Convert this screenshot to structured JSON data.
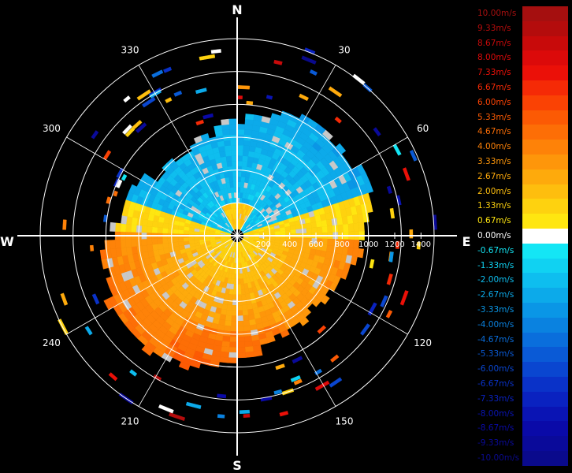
{
  "chart_data": {
    "type": "polar-heatmap",
    "title": "",
    "compass": {
      "north": "N",
      "east": "E",
      "south": "S",
      "west": "W"
    },
    "azimuth_labels": [
      "30",
      "60",
      "120",
      "150",
      "210",
      "240",
      "300",
      "330"
    ],
    "azimuth_values": [
      30,
      60,
      120,
      150,
      210,
      240,
      300,
      330
    ],
    "range_labels": [
      "200",
      "400",
      "600",
      "800",
      "1000",
      "1200",
      "1400"
    ],
    "range_values": [
      200,
      400,
      600,
      800,
      1000,
      1200,
      1400
    ],
    "range_max": 1500,
    "ring_values": [
      250,
      500,
      750,
      1000,
      1250,
      1500
    ],
    "legend": {
      "unit": "m/s",
      "entries": [
        {
          "label": "10.00m/s",
          "value": 10.0,
          "color": "#a50f0f"
        },
        {
          "label": "9.33m/s",
          "value": 9.33,
          "color": "#b40c0c"
        },
        {
          "label": "8.67m/s",
          "value": 8.67,
          "color": "#c80a0a"
        },
        {
          "label": "8.00m/s",
          "value": 8.0,
          "color": "#dc0a0a"
        },
        {
          "label": "7.33m/s",
          "value": 7.33,
          "color": "#eb1008"
        },
        {
          "label": "6.67m/s",
          "value": 6.67,
          "color": "#f52a06"
        },
        {
          "label": "6.00m/s",
          "value": 6.0,
          "color": "#fa4204"
        },
        {
          "label": "5.33m/s",
          "value": 5.33,
          "color": "#fc5a04"
        },
        {
          "label": "4.67m/s",
          "value": 4.67,
          "color": "#fd6e06"
        },
        {
          "label": "4.00m/s",
          "value": 4.0,
          "color": "#fe8208"
        },
        {
          "label": "3.33m/s",
          "value": 3.33,
          "color": "#fe960a"
        },
        {
          "label": "2.67m/s",
          "value": 2.67,
          "color": "#feaa0c"
        },
        {
          "label": "2.00m/s",
          "value": 2.0,
          "color": "#febe0e"
        },
        {
          "label": "1.33m/s",
          "value": 1.33,
          "color": "#fed20f"
        },
        {
          "label": "0.67m/s",
          "value": 0.67,
          "color": "#ffe610"
        },
        {
          "label": "0.00m/s",
          "value": 0.0,
          "color": "#ffffff"
        },
        {
          "label": "-0.67m/s",
          "value": -0.67,
          "color": "#14e6f5"
        },
        {
          "label": "-1.33m/s",
          "value": -1.33,
          "color": "#10d2f2"
        },
        {
          "label": "-2.00m/s",
          "value": -2.0,
          "color": "#0ebeef"
        },
        {
          "label": "-2.67m/s",
          "value": -2.67,
          "color": "#0caaea"
        },
        {
          "label": "-3.33m/s",
          "value": -3.33,
          "color": "#0a96e6"
        },
        {
          "label": "-4.00m/s",
          "value": -4.0,
          "color": "#0a82e0"
        },
        {
          "label": "-4.67m/s",
          "value": -4.67,
          "color": "#0a6edc"
        },
        {
          "label": "-5.33m/s",
          "value": -5.33,
          "color": "#0a5ad6"
        },
        {
          "label": "-6.00m/s",
          "value": -6.0,
          "color": "#0a46d0"
        },
        {
          "label": "-6.67m/s",
          "value": -6.67,
          "color": "#0a32c8"
        },
        {
          "label": "-7.33m/s",
          "value": -7.33,
          "color": "#0a22c0"
        },
        {
          "label": "-8.00m/s",
          "value": -8.0,
          "color": "#0a14b4"
        },
        {
          "label": "-8.67m/s",
          "value": -8.67,
          "color": "#0a0aa8"
        },
        {
          "label": "-9.33m/s",
          "value": -9.33,
          "color": "#0a0a9a"
        },
        {
          "label": "-10.00m/s",
          "value": -10.0,
          "color": "#0a0a8c"
        }
      ]
    }
  }
}
